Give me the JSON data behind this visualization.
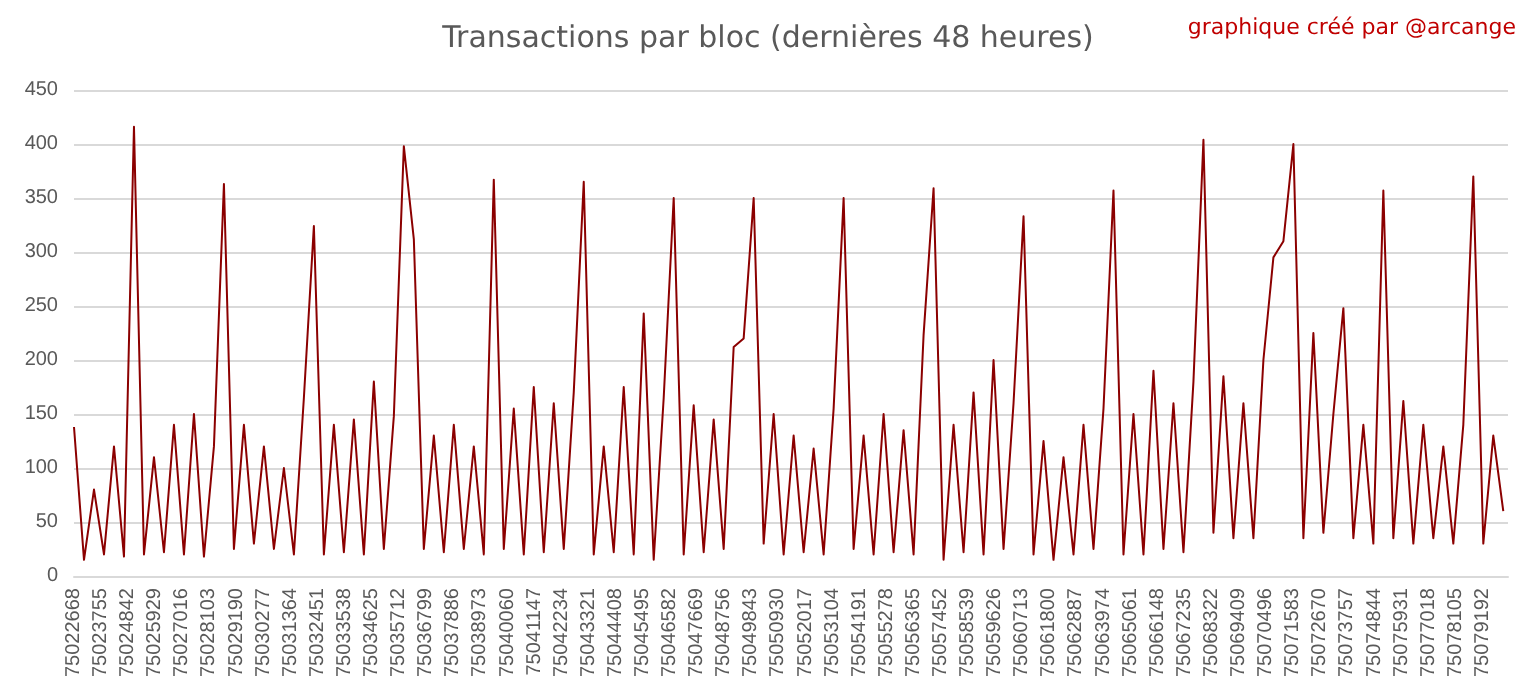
{
  "chart_data": {
    "type": "line",
    "title": "Transactions par bloc (dernières 48 heures)",
    "annotations": [
      "graphique créé par @arcange"
    ],
    "x": [
      75022668,
      75023069,
      75023470,
      75023871,
      75024272,
      75024673,
      75025074,
      75025475,
      75025876,
      75026277,
      75026678,
      75027079,
      75027480,
      75027881,
      75028282,
      75028683,
      75029084,
      75029485,
      75029886,
      75030287,
      75030688,
      75031089,
      75031490,
      75031891,
      75032292,
      75032693,
      75033094,
      75033495,
      75033896,
      75034297,
      75034698,
      75035099,
      75035500,
      75035901,
      75036302,
      75036703,
      75037104,
      75037505,
      75037906,
      75038307,
      75038708,
      75039109,
      75039510,
      75039911,
      75040312,
      75040713,
      75041114,
      75041515,
      75041916,
      75042317,
      75042718,
      75043119,
      75043520,
      75043921,
      75044322,
      75044723,
      75045124,
      75045525,
      75045926,
      75046327,
      75046728,
      75047129,
      75047530,
      75047931,
      75048332,
      75048733,
      75049134,
      75049535,
      75049936,
      75050337,
      75050738,
      75051139,
      75051540,
      75051941,
      75052342,
      75052743,
      75053144,
      75053545,
      75053946,
      75054347,
      75054748,
      75055149,
      75055550,
      75055951,
      75056352,
      75056753,
      75057154,
      75057555,
      75057956,
      75058357,
      75058758,
      75059159,
      75059560,
      75059961,
      75060362,
      75060763,
      75061164,
      75061565,
      75061966,
      75062367,
      75062768,
      75063169,
      75063570,
      75063971,
      75064372,
      75064773,
      75065174,
      75065575,
      75065976,
      75066377,
      75066778,
      75067179,
      75067580,
      75067981,
      75068382,
      75068783,
      75069184,
      75069585,
      75069986,
      75070387,
      75070788,
      75071189,
      75071590,
      75071991,
      75072392,
      75072793,
      75073194,
      75073595,
      75073996,
      75074397,
      75074798,
      75075199,
      75075600,
      75076001,
      75076402,
      75076803,
      75077204,
      75077605,
      75078006,
      75078407,
      75078808,
      75079209,
      75079610,
      75080011
    ],
    "series": [
      {
        "color": "#8b0000",
        "values": [
          138,
          15,
          80,
          20,
          120,
          18,
          416,
          20,
          110,
          22,
          140,
          20,
          150,
          18,
          120,
          363,
          25,
          140,
          30,
          120,
          25,
          100,
          20,
          165,
          324,
          20,
          140,
          22,
          145,
          20,
          180,
          25,
          148,
          398,
          312,
          25,
          130,
          22,
          140,
          25,
          120,
          20,
          367,
          25,
          155,
          20,
          175,
          22,
          160,
          25,
          170,
          365,
          20,
          120,
          22,
          175,
          20,
          243,
          15,
          165,
          350,
          20,
          158,
          22,
          145,
          25,
          212,
          220,
          350,
          30,
          150,
          20,
          130,
          22,
          118,
          20,
          155,
          350,
          25,
          130,
          20,
          150,
          22,
          135,
          20,
          223,
          359,
          15,
          140,
          22,
          170,
          20,
          200,
          25,
          160,
          333,
          20,
          125,
          15,
          110,
          20,
          140,
          25,
          155,
          357,
          20,
          150,
          20,
          190,
          25,
          160,
          22,
          180,
          404,
          40,
          185,
          35,
          160,
          35,
          200,
          295,
          310,
          400,
          35,
          225,
          40,
          150,
          248,
          35,
          140,
          30,
          357,
          35,
          162,
          30,
          140,
          35,
          120,
          30,
          140,
          370,
          30,
          130,
          60
        ]
      }
    ],
    "xlim": [
      75022668,
      75080200
    ],
    "xticks": [
      75022668,
      75023755,
      75024842,
      75025929,
      75027016,
      75028103,
      75029190,
      75030277,
      75031364,
      75032451,
      75033538,
      75034625,
      75035712,
      75036799,
      75037886,
      75038973,
      75040060,
      75041147,
      75042234,
      75043321,
      75044408,
      75045495,
      75046582,
      75047669,
      75048756,
      75049843,
      75050930,
      75052017,
      75053104,
      75054191,
      75055278,
      75056365,
      75057452,
      75058539,
      75059626,
      75060713,
      75061800,
      75062887,
      75063974,
      75065061,
      75066148,
      75067235,
      75068322,
      75069409,
      75070496,
      75071583,
      75072670,
      75073757,
      75074844,
      75075931,
      75077018,
      75078105,
      75079192
    ],
    "ylim": [
      0,
      450
    ],
    "yticks": [
      0,
      50,
      100,
      150,
      200,
      250,
      300,
      350,
      400,
      450
    ],
    "grid": "y",
    "marker": "none",
    "line_style": "solid"
  }
}
